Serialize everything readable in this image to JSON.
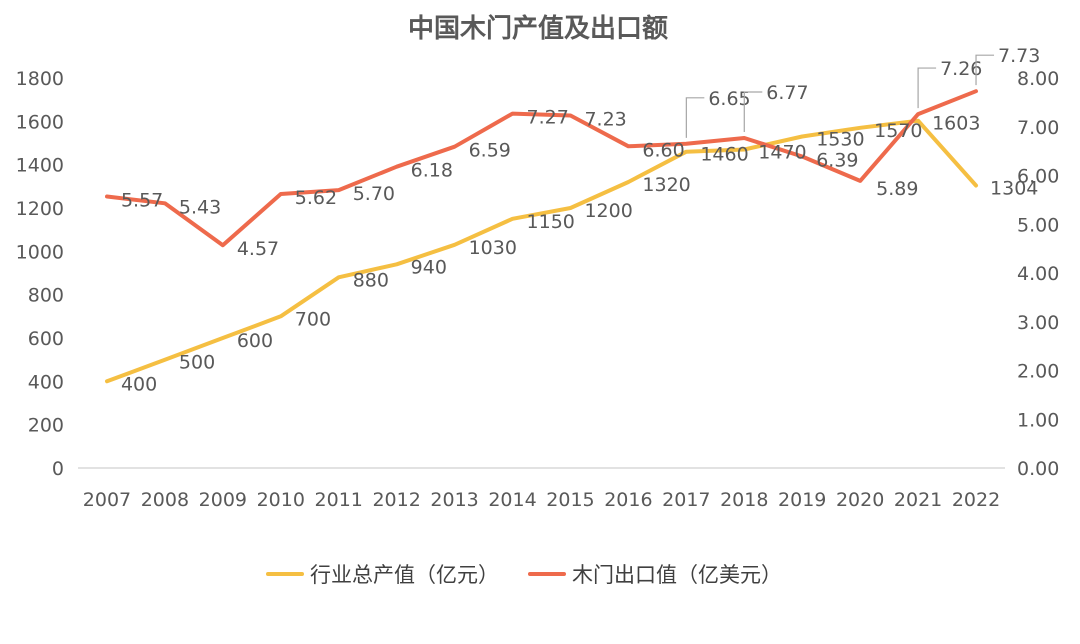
{
  "chart_data": {
    "type": "line",
    "title": "中国木门产值及出口额",
    "categories": [
      "2007",
      "2008",
      "2009",
      "2010",
      "2011",
      "2012",
      "2013",
      "2014",
      "2015",
      "2016",
      "2017",
      "2018",
      "2019",
      "2020",
      "2021",
      "2022"
    ],
    "series": [
      {
        "name": "行业总产值（亿元）",
        "axis": "left",
        "color": "#F5BF42",
        "values": [
          400,
          500,
          600,
          700,
          880,
          940,
          1030,
          1150,
          1200,
          1320,
          1460,
          1470,
          1530,
          1570,
          1603,
          1304
        ],
        "labels": [
          "400",
          "500",
          "600",
          "700",
          "880",
          "940",
          "1030",
          "1150",
          "1200",
          "1320",
          "1460",
          "1470",
          "1530",
          "1570",
          "1603",
          "1304"
        ]
      },
      {
        "name": "木门出口值（亿美元）",
        "axis": "right",
        "color": "#EE6A4C",
        "values": [
          5.57,
          5.43,
          4.57,
          5.62,
          5.7,
          6.18,
          6.59,
          7.27,
          7.23,
          6.6,
          6.65,
          6.77,
          6.39,
          5.89,
          7.26,
          7.73
        ],
        "labels": [
          "5.57",
          "5.43",
          "4.57",
          "5.62",
          "5.70",
          "6.18",
          "6.59",
          "7.27",
          "7.23",
          "6.60",
          "6.65",
          "6.77",
          "6.39",
          "5.89",
          "7.26",
          "7.73"
        ]
      }
    ],
    "yleft": {
      "min": 0,
      "max": 1800,
      "step": 200,
      "ticks": [
        "0",
        "200",
        "400",
        "600",
        "800",
        "1000",
        "1200",
        "1400",
        "1600",
        "1800"
      ]
    },
    "yright": {
      "min": 0,
      "max": 8,
      "step": 1,
      "ticks": [
        "0.00",
        "1.00",
        "2.00",
        "3.00",
        "4.00",
        "5.00",
        "6.00",
        "7.00",
        "8.00"
      ]
    },
    "legend_position": "bottom",
    "grid": false
  }
}
